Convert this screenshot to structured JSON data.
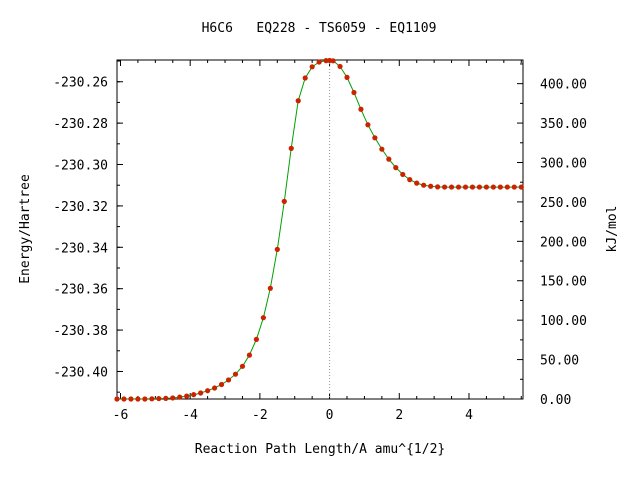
{
  "chart_data": {
    "type": "line",
    "title": "H6C6   EQ228 - TS6059 - EQ1109",
    "xlabel": "Reaction Path Length/A amu^{1/2}",
    "ylabel": "Energy/Hartree",
    "y2label": "kJ/mol",
    "xlim": [
      -6.1,
      5.55
    ],
    "ylim": [
      -230.4133,
      -230.2495
    ],
    "y2lim": [
      0,
      430
    ],
    "xticks": [
      -6,
      -4,
      -2,
      0,
      2,
      4
    ],
    "xtick_labels": [
      "-6",
      "-4",
      "-2",
      "0",
      "2",
      "4"
    ],
    "yticks": [
      -230.26,
      -230.28,
      -230.3,
      -230.32,
      -230.34,
      -230.36,
      -230.38,
      -230.4
    ],
    "ytick_labels": [
      "-230.26",
      "-230.28",
      "-230.30",
      "-230.32",
      "-230.34",
      "-230.36",
      "-230.38",
      "-230.40"
    ],
    "y2ticks": [
      0,
      50,
      100,
      150,
      200,
      250,
      300,
      350,
      400
    ],
    "y2tick_labels": [
      "0.00",
      "50.00",
      "100.00",
      "150.00",
      "200.00",
      "250.00",
      "300.00",
      "350.00",
      "400.00"
    ],
    "ts_marker_x": 0,
    "grid": false,
    "colors": {
      "line": "#00a000",
      "points": "#cc2200",
      "ts_line": "#999999",
      "axis": "#000000"
    },
    "series": [
      {
        "x": [
          -6.1,
          -5.9,
          -5.7,
          -5.5,
          -5.3,
          -5.1,
          -4.9,
          -4.7,
          -4.5,
          -4.3,
          -4.1,
          -3.9,
          -3.7,
          -3.5,
          -3.3,
          -3.1,
          -2.9,
          -2.7,
          -2.5,
          -2.3,
          -2.1,
          -1.9,
          -1.7,
          -1.5,
          -1.3,
          -1.1,
          -0.9,
          -0.7,
          -0.5,
          -0.3,
          -0.1,
          0,
          0.1,
          0.3,
          0.5,
          0.7,
          0.9,
          1.1,
          1.3,
          1.5,
          1.7,
          1.9,
          2.1,
          2.3,
          2.5,
          2.7,
          2.9,
          3.1,
          3.3,
          3.5,
          3.7,
          3.9,
          4.1,
          4.3,
          4.5,
          4.7,
          4.9,
          5.1,
          5.3,
          5.5
        ],
        "y": [
          -230.4133,
          -230.4133,
          -230.4133,
          -230.4133,
          -230.4133,
          -230.4132,
          -230.4131,
          -230.413,
          -230.4128,
          -230.4124,
          -230.4119,
          -230.4112,
          -230.4104,
          -230.4093,
          -230.408,
          -230.4063,
          -230.4041,
          -230.4013,
          -230.3975,
          -230.3921,
          -230.3845,
          -230.374,
          -230.3598,
          -230.341,
          -230.3178,
          -230.2922,
          -230.2692,
          -230.2582,
          -230.2528,
          -230.2505,
          -230.2498,
          -230.2497,
          -230.2499,
          -230.2526,
          -230.2579,
          -230.2652,
          -230.2733,
          -230.2808,
          -230.2871,
          -230.2926,
          -230.2974,
          -230.3015,
          -230.3048,
          -230.3073,
          -230.309,
          -230.31,
          -230.3105,
          -230.3108,
          -230.3109,
          -230.3109,
          -230.3109,
          -230.3109,
          -230.3109,
          -230.3109,
          -230.3109,
          -230.3109,
          -230.3109,
          -230.3109,
          -230.3109,
          -230.3109
        ]
      }
    ]
  }
}
